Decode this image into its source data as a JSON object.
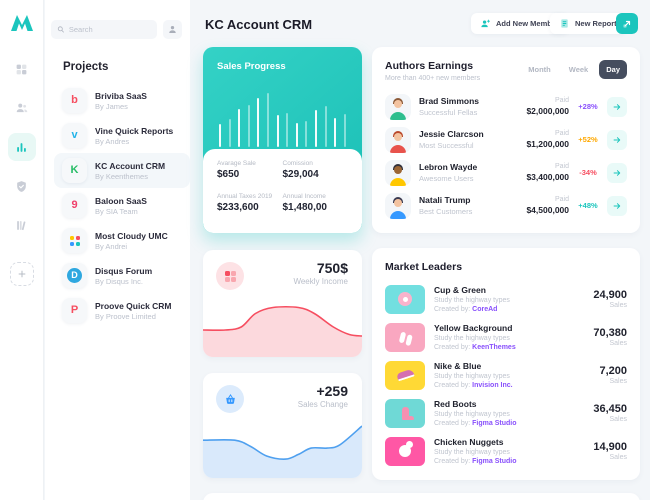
{
  "header": {
    "title": "KC Account CRM",
    "add_member": "Add New Member",
    "new_report": "New Report"
  },
  "rail": {
    "icons": [
      "dashboard-icon",
      "users-icon",
      "analytics-icon",
      "shield-check-icon",
      "library-icon",
      "add-icon"
    ],
    "active": "analytics-icon"
  },
  "projects": {
    "search_placeholder": "Search",
    "heading": "Projects",
    "items": [
      {
        "title": "Briviba SaaS",
        "by": "By James",
        "type": "letter",
        "glyph": "b",
        "color": "#F64E60"
      },
      {
        "title": "Vine Quick Reports",
        "by": "By Andres",
        "type": "letter",
        "glyph": "v",
        "color": "#21B3E8"
      },
      {
        "title": "KC Account CRM",
        "by": "By Keenthemes",
        "type": "letter",
        "glyph": "K",
        "color": "#27BC66",
        "row_bg": "#F3F7FA"
      },
      {
        "title": "Baloon SaaS",
        "by": "By SIA Team",
        "type": "letter",
        "glyph": "9",
        "color": "#F0416C"
      },
      {
        "title": "Most Cloudy UMC",
        "by": "By Andrei",
        "type": "dots"
      },
      {
        "title": "Disqus Forum",
        "by": "By Disqus Inc.",
        "type": "badge",
        "glyph": "D",
        "color": "#2FA8E0"
      },
      {
        "title": "Proove Quick CRM",
        "by": "By Proove Limited",
        "type": "letter",
        "glyph": "P",
        "color": "#F64E60"
      }
    ]
  },
  "sales_progress": {
    "title": "Sales Progress",
    "stats": [
      {
        "label": "Avarage Sale",
        "value": "$650"
      },
      {
        "label": "Comission",
        "value": "$29,004"
      },
      {
        "label": "Annual Taxes 2019",
        "value": "$233,600"
      },
      {
        "label": "Annual Income",
        "value": "$1,480,00"
      }
    ]
  },
  "authors": {
    "title": "Authors Earnings",
    "subtitle": "More than 400+ new members",
    "tabs": [
      {
        "label": "Month"
      },
      {
        "label": "Week"
      },
      {
        "label": "Day",
        "bg": "#464E5F",
        "fg": "#FFFFFF"
      }
    ],
    "rows": [
      {
        "name": "Brad Simmons",
        "role": "Successful Fellas",
        "paid": "Paid",
        "amount": "$2,000,000",
        "pct": "+28%",
        "pct_color": "#8950FC",
        "skin": "#F3C3A0",
        "hair": "#8C5A38",
        "shirt": "#2EBE8E"
      },
      {
        "name": "Jessie Clarcson",
        "role": "Most Successful",
        "paid": "Paid",
        "amount": "$1,200,000",
        "pct": "+52%",
        "pct_color": "#FFA800",
        "skin": "#F3C3A0",
        "hair": "#B9482B",
        "shirt": "#E8534C"
      },
      {
        "name": "Lebron Wayde",
        "role": "Awesome Users",
        "paid": "Paid",
        "amount": "$3,400,000",
        "pct": "-34%",
        "pct_color": "#F64E60",
        "skin": "#9C6635",
        "hair": "#31313B",
        "shirt": "#FFC700"
      },
      {
        "name": "Natali Trump",
        "role": "Best Customers",
        "paid": "Paid",
        "amount": "$4,500,000",
        "pct": "+48%",
        "pct_color": "#1BC5BD",
        "skin": "#F3C3A0",
        "hair": "#3A3A50",
        "shirt": "#3699FF"
      }
    ]
  },
  "weekly_income": {
    "value": "750$",
    "label": "Weekly Income"
  },
  "sales_change": {
    "value": "+259",
    "label": "Sales Change"
  },
  "market": {
    "title": "Market Leaders",
    "rows": [
      {
        "name": "Cup & Green",
        "desc": "Study the highway types",
        "created_prefix": "Created by:",
        "creator": "CoreAd",
        "value": "24,900",
        "unit": "Sales",
        "tile": "#72DFE0",
        "art": "donut"
      },
      {
        "name": "Yellow Background",
        "desc": "Study the highway types",
        "created_prefix": "Created by:",
        "creator": "KeenThemes",
        "value": "70,380",
        "unit": "Sales",
        "tile": "#F9A7C0",
        "art": "slippers"
      },
      {
        "name": "Nike & Blue",
        "desc": "Study the highway types",
        "created_prefix": "Created by:",
        "creator": "Invision Inc.",
        "value": "7,200",
        "unit": "Sales",
        "tile": "#FFD935",
        "art": "sneaker"
      },
      {
        "name": "Red Boots",
        "desc": "Study the highway types",
        "created_prefix": "Created by:",
        "creator": "Figma Studio",
        "value": "36,450",
        "unit": "Sales",
        "tile": "#6FD9D6",
        "art": "boot"
      },
      {
        "name": "Chicken Nuggets",
        "desc": "Study the highway types",
        "created_prefix": "Created by:",
        "creator": "Figma Studio",
        "value": "14,900",
        "unit": "Sales",
        "tile": "#FF57A5",
        "art": "chicken"
      }
    ]
  },
  "colors": {
    "accent_teal": "#1BC5BD",
    "purple": "#8950FC",
    "orange": "#FFA800",
    "red": "#F64E60",
    "blue": "#3699FF",
    "dark_tab": "#464E5F",
    "page_bg": "#F3F6F9"
  },
  "chart_data": [
    {
      "type": "bar",
      "title": "Sales Progress",
      "values": [
        35,
        42,
        58,
        64,
        74,
        82,
        48,
        52,
        36,
        40,
        56,
        62,
        44,
        50
      ],
      "ylabel": "bar height as % of plot area",
      "grid": false
    },
    {
      "type": "area",
      "title": "Weekly Income",
      "value": "750$",
      "x_range": [
        0,
        100
      ],
      "y_range": [
        0,
        40
      ],
      "y_down": true,
      "points": [
        [
          0,
          22
        ],
        [
          14,
          22
        ],
        [
          24,
          20
        ],
        [
          33,
          11
        ],
        [
          44,
          7
        ],
        [
          60,
          7
        ],
        [
          70,
          11
        ],
        [
          82,
          20
        ],
        [
          92,
          25
        ],
        [
          100,
          26
        ]
      ],
      "stroke": "#F64E60",
      "fill": "#FCD9DD"
    },
    {
      "type": "area",
      "title": "Sales Change",
      "value": "+259",
      "x_range": [
        0,
        100
      ],
      "y_range": [
        0,
        40
      ],
      "y_down": true,
      "points": [
        [
          0,
          16
        ],
        [
          20,
          16
        ],
        [
          30,
          20
        ],
        [
          40,
          26
        ],
        [
          52,
          28
        ],
        [
          60,
          25
        ],
        [
          68,
          21
        ],
        [
          78,
          21
        ],
        [
          86,
          19
        ],
        [
          100,
          7
        ]
      ],
      "stroke": "#4FA0EF",
      "fill": "#D9E9FB"
    }
  ]
}
